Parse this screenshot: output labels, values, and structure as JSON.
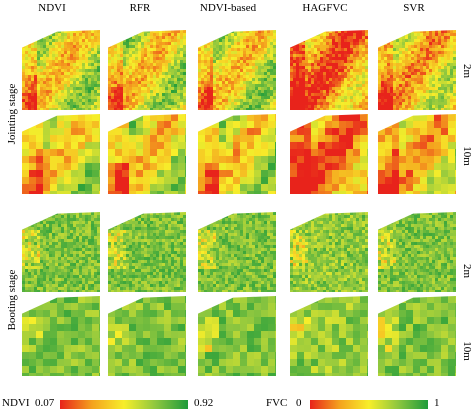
{
  "columns": [
    "NDVI",
    "RFR",
    "NDVI-based",
    "HAGFVC",
    "SVR"
  ],
  "stages": [
    "Jointing stage",
    "Booting stage"
  ],
  "resolutions": [
    "2m",
    "10m"
  ],
  "legend": {
    "ndvi": {
      "label": "NDVI",
      "min": "0.07",
      "max": "0.92",
      "colors": [
        "#e8231b",
        "#f4a21e",
        "#f7ee2a",
        "#8cc63f",
        "#1e9b3a"
      ]
    },
    "fvc": {
      "label": "FVC",
      "min": "0",
      "max": "1",
      "colors": [
        "#e8231b",
        "#f4a21e",
        "#f7ee2a",
        "#8cc63f",
        "#1e9b3a"
      ]
    }
  }
}
